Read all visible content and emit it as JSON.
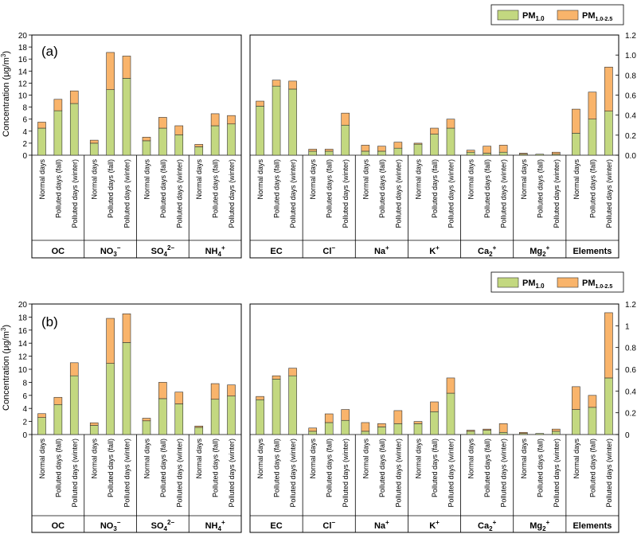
{
  "legend": {
    "pm1": "PM",
    "pm1_sub": "1.0",
    "pm25": "PM",
    "pm25_sub": "1.0-2.5"
  },
  "colors": {
    "pm1": "#c3d880",
    "pm25": "#f9b46b",
    "edge": "#333333"
  },
  "axis_title": {
    "main": "Concentration (μg/m",
    "sup": "3",
    "close": ")"
  },
  "category_labels": [
    "Normal days",
    "Polluted days (fall)",
    "Polluted days (winter)"
  ],
  "chart_data": [
    {
      "panel": "(a)",
      "type": "bar",
      "stacked": true,
      "series": [
        "PM1.0",
        "PM1.0-2.5"
      ],
      "categories": [
        "Normal days",
        "Polluted days (fall)",
        "Polluted days (winter)"
      ],
      "left": {
        "ylim": [
          0,
          20
        ],
        "ticks": [
          "0",
          "2",
          "4",
          "6",
          "8",
          "10",
          "12",
          "14",
          "16",
          "18",
          "20"
        ],
        "groups": [
          {
            "name": "OC",
            "pm1": [
              4.5,
              7.4,
              8.6
            ],
            "pm25": [
              1.0,
              1.9,
              2.1
            ]
          },
          {
            "name": "NO3-",
            "pm1": [
              2.0,
              10.9,
              12.8
            ],
            "pm25": [
              0.5,
              6.2,
              3.7
            ]
          },
          {
            "name": "SO42-",
            "pm1": [
              2.4,
              4.5,
              3.4
            ],
            "pm25": [
              0.6,
              1.8,
              1.5
            ]
          },
          {
            "name": "NH4+",
            "pm1": [
              1.4,
              4.9,
              5.2
            ],
            "pm25": [
              0.4,
              2.0,
              1.4
            ]
          }
        ]
      },
      "right": {
        "ylim": [
          0,
          1.2
        ],
        "ticks": [
          "0.0",
          "0.2",
          "0.4",
          "0.6",
          "0.8",
          "1.0",
          "1.2"
        ],
        "groups": [
          {
            "name": "EC",
            "pm1": [
              0.49,
              0.69,
              0.66
            ],
            "pm25": [
              0.05,
              0.06,
              0.08
            ]
          },
          {
            "name": "Cl-",
            "pm1": [
              0.04,
              0.04,
              0.3
            ],
            "pm25": [
              0.02,
              0.02,
              0.12
            ]
          },
          {
            "name": "Na+",
            "pm1": [
              0.04,
              0.04,
              0.07
            ],
            "pm25": [
              0.06,
              0.05,
              0.06
            ]
          },
          {
            "name": "K+",
            "pm1": [
              0.11,
              0.21,
              0.27
            ],
            "pm25": [
              0.01,
              0.06,
              0.09
            ]
          },
          {
            "name": "Ca2+",
            "pm1": [
              0.03,
              0.02,
              0.03
            ],
            "pm25": [
              0.02,
              0.07,
              0.07
            ]
          },
          {
            "name": "Mg2+",
            "pm1": [
              0.01,
              0.01,
              0.01
            ],
            "pm25": [
              0.01,
              0.0,
              0.02
            ]
          },
          {
            "name": "Elements",
            "pm1": [
              0.22,
              0.36,
              0.44
            ],
            "pm25": [
              0.24,
              0.27,
              0.44
            ]
          }
        ]
      }
    },
    {
      "panel": "(b)",
      "type": "bar",
      "stacked": true,
      "series": [
        "PM1.0",
        "PM1.0-2.5"
      ],
      "categories": [
        "Normal days",
        "Polluted days (fall)",
        "Polluted days (winter)"
      ],
      "left": {
        "ylim": [
          0,
          20
        ],
        "ticks": [
          "0",
          "2",
          "4",
          "6",
          "8",
          "10",
          "12",
          "14",
          "16",
          "18",
          "20"
        ],
        "groups": [
          {
            "name": "OC",
            "pm1": [
              2.6,
              4.6,
              9.0
            ],
            "pm25": [
              0.6,
              1.1,
              2.0
            ]
          },
          {
            "name": "NO3-",
            "pm1": [
              1.4,
              10.9,
              14.1
            ],
            "pm25": [
              0.4,
              6.9,
              4.4
            ]
          },
          {
            "name": "SO42-",
            "pm1": [
              2.1,
              5.5,
              4.7
            ],
            "pm25": [
              0.4,
              2.5,
              1.8
            ]
          },
          {
            "name": "NH4+",
            "pm1": [
              1.1,
              5.4,
              5.9
            ],
            "pm25": [
              0.2,
              2.4,
              1.7
            ]
          }
        ]
      },
      "right": {
        "ylim": [
          0,
          1.2
        ],
        "ticks": [
          "0",
          "0.2",
          "0.4",
          "0.6",
          "0.8",
          "1",
          "1.2"
        ],
        "groups": [
          {
            "name": "EC",
            "pm1": [
              0.32,
              0.51,
              0.54
            ],
            "pm25": [
              0.03,
              0.03,
              0.07
            ]
          },
          {
            "name": "Cl-",
            "pm1": [
              0.03,
              0.11,
              0.13
            ],
            "pm25": [
              0.03,
              0.08,
              0.1
            ]
          },
          {
            "name": "Na+",
            "pm1": [
              0.03,
              0.07,
              0.1
            ],
            "pm25": [
              0.08,
              0.03,
              0.12
            ]
          },
          {
            "name": "K+",
            "pm1": [
              0.1,
              0.21,
              0.38
            ],
            "pm25": [
              0.02,
              0.09,
              0.14
            ]
          },
          {
            "name": "Ca2+",
            "pm1": [
              0.03,
              0.04,
              0.02
            ],
            "pm25": [
              0.01,
              0.01,
              0.08
            ]
          },
          {
            "name": "Mg2+",
            "pm1": [
              0.01,
              0.01,
              0.03
            ],
            "pm25": [
              0.01,
              0.0,
              0.02
            ]
          },
          {
            "name": "Elements",
            "pm1": [
              0.23,
              0.25,
              0.52
            ],
            "pm25": [
              0.21,
              0.11,
              0.6
            ]
          }
        ]
      }
    }
  ]
}
